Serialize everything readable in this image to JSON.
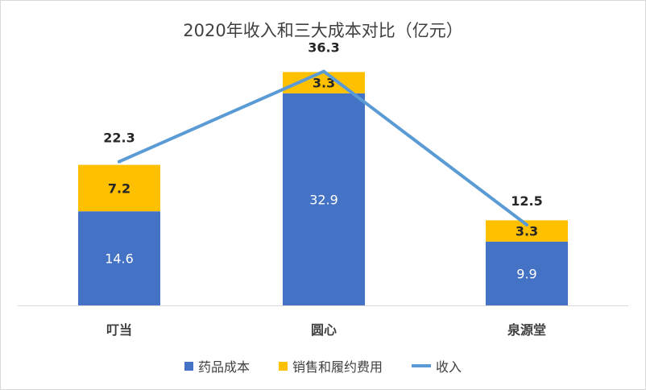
{
  "chart_data": {
    "type": "bar",
    "title": "2020年收入和三大成本对比（亿元）",
    "categories": [
      "叮当",
      "圆心",
      "泉源堂"
    ],
    "series": [
      {
        "name": "药品成本",
        "kind": "stacked-bar",
        "color": "#4472c4",
        "values": [
          14.6,
          32.9,
          9.9
        ]
      },
      {
        "name": "销售和履约费用",
        "kind": "stacked-bar",
        "color": "#ffc000",
        "values": [
          7.2,
          3.3,
          3.3
        ]
      },
      {
        "name": "收入",
        "kind": "line",
        "color": "#5b9bd5",
        "values": [
          22.3,
          36.3,
          12.5
        ]
      }
    ],
    "ylim": [
      0,
      40
    ],
    "grid": false,
    "legend": "bottom"
  }
}
